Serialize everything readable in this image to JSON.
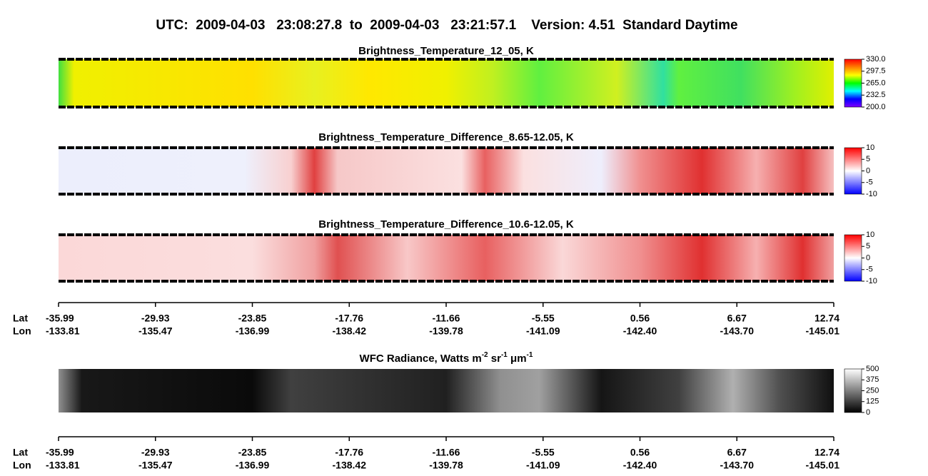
{
  "suptitle": "UTC:  2009-04-03   23:08:27.8  to  2009-04-03   23:21:57.1    Version: 4.51  Standard Daytime",
  "chart_data": [
    {
      "type": "heatmap",
      "title": "Brightness_Temperature_12_05, K",
      "colormap": [
        "#7f00ff",
        "#0000ff",
        "#00ffff",
        "#00ff00",
        "#ffff00",
        "#ff8000",
        "#ff0000"
      ],
      "zlim": [
        200,
        330
      ],
      "zticks": [
        {
          "value": 330,
          "label": "330.0"
        },
        {
          "value": 297.5,
          "label": "297.5"
        },
        {
          "value": 265,
          "label": "265.0"
        },
        {
          "value": 232.5,
          "label": "232.5"
        },
        {
          "value": 200,
          "label": "200.0"
        }
      ]
    },
    {
      "type": "heatmap",
      "title": "Brightness_Temperature_Difference_8.65-12.05, K",
      "colormap": [
        "#0000ff",
        "#ffffff",
        "#ff0000"
      ],
      "zlim": [
        -10,
        10
      ],
      "zticks": [
        10,
        5,
        0,
        -5,
        -10
      ]
    },
    {
      "type": "heatmap",
      "title": "Brightness_Temperature_Difference_10.6-12.05, K",
      "colormap": [
        "#0000ff",
        "#ffffff",
        "#ff0000"
      ],
      "zlim": [
        -10,
        10
      ],
      "zticks": [
        10,
        5,
        0,
        -5,
        -10
      ]
    },
    {
      "type": "heatmap",
      "title": [
        "WFC Radiance, Watts m",
        "-2",
        " sr",
        "-1",
        " μm",
        "-1"
      ],
      "colormap": [
        "#000000",
        "#ffffff"
      ],
      "zlim": [
        0,
        500
      ],
      "zticks": [
        500,
        375,
        250,
        125,
        0
      ]
    }
  ],
  "x_axes": [
    {
      "lat_label": "Lat",
      "lon_label": "Lon",
      "ticks": [
        {
          "lat": "-35.99",
          "lon": "-133.81"
        },
        {
          "lat": "-29.93",
          "lon": "-135.47"
        },
        {
          "lat": "-23.85",
          "lon": "-136.99"
        },
        {
          "lat": "-17.76",
          "lon": "-138.42"
        },
        {
          "lat": "-11.66",
          "lon": "-139.78"
        },
        {
          "lat": "-5.55",
          "lon": "-141.09"
        },
        {
          "lat": "0.56",
          "lon": "-142.40"
        },
        {
          "lat": "6.67",
          "lon": "-143.70"
        },
        {
          "lat": "12.74",
          "lon": "-145.01"
        }
      ]
    },
    {
      "lat_label": "Lat",
      "lon_label": "Lon",
      "ticks": [
        {
          "lat": "-35.99",
          "lon": "-133.81"
        },
        {
          "lat": "-29.93",
          "lon": "-135.47"
        },
        {
          "lat": "-23.85",
          "lon": "-136.99"
        },
        {
          "lat": "-17.76",
          "lon": "-138.42"
        },
        {
          "lat": "-11.66",
          "lon": "-139.78"
        },
        {
          "lat": "-5.55",
          "lon": "-141.09"
        },
        {
          "lat": "0.56",
          "lon": "-142.40"
        },
        {
          "lat": "6.67",
          "lon": "-143.70"
        },
        {
          "lat": "12.74",
          "lon": "-145.01"
        }
      ]
    }
  ]
}
